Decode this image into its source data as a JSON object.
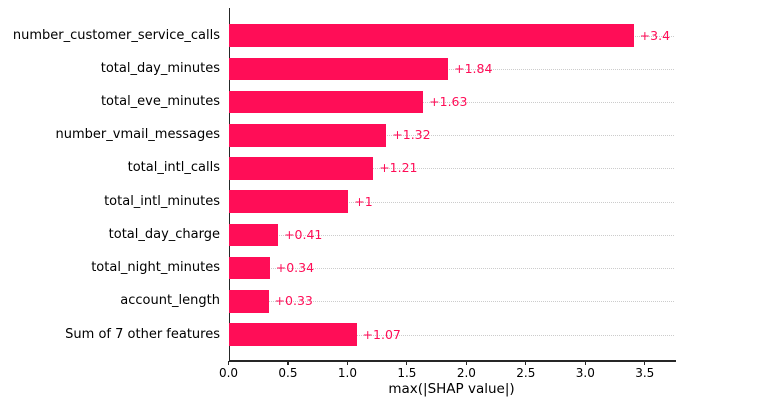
{
  "chart_data": {
    "type": "bar",
    "orientation": "horizontal",
    "title": "",
    "xlabel": "max(|SHAP value|)",
    "ylabel": "",
    "categories": [
      "number_customer_service_calls",
      "total_day_minutes",
      "total_eve_minutes",
      "number_vmail_messages",
      "total_intl_calls",
      "total_intl_minutes",
      "total_day_charge",
      "total_night_minutes",
      "account_length",
      "Sum of 7 other features"
    ],
    "values": [
      3.4,
      1.84,
      1.63,
      1.32,
      1.21,
      1.0,
      0.41,
      0.34,
      0.33,
      1.07
    ],
    "value_labels": [
      "+3.4",
      "+1.84",
      "+1.63",
      "+1.32",
      "+1.21",
      "+1",
      "+0.41",
      "+0.34",
      "+0.33",
      "+1.07"
    ],
    "xticks": [
      0.0,
      0.5,
      1.0,
      1.5,
      2.0,
      2.5,
      3.0,
      3.5
    ],
    "xtick_labels": [
      "0.0",
      "0.5",
      "1.0",
      "1.5",
      "2.0",
      "2.5",
      "3.0",
      "3.5"
    ],
    "xlim": [
      0,
      3.75
    ],
    "grid": "dotted horizontal line per bar row",
    "legend": null,
    "colors": {
      "bar": "#ff0d57",
      "value_label": "#ff0d57",
      "gridline": "#cccccc",
      "axis": "#262626",
      "text": "#000000",
      "background": "#ffffff"
    }
  }
}
